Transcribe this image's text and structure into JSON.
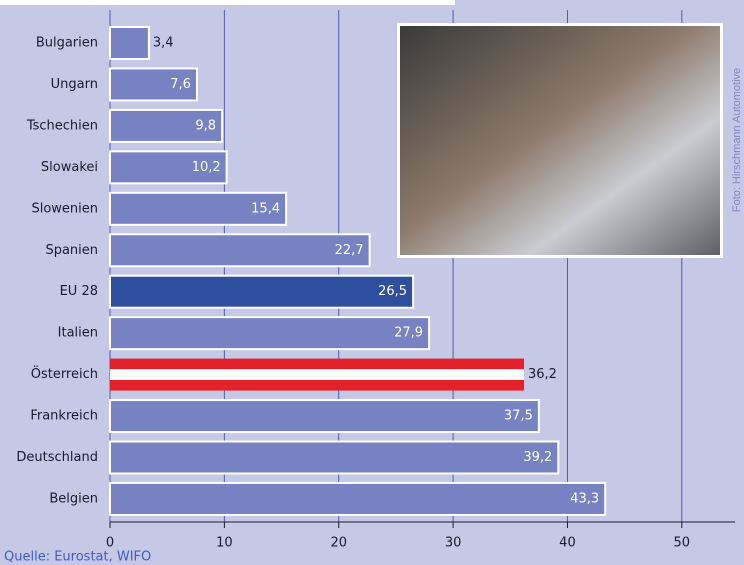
{
  "chart_data": {
    "type": "bar",
    "orientation": "horizontal",
    "categories": [
      "Bulgarien",
      "Ungarn",
      "Tschechien",
      "Slowakei",
      "Slowenien",
      "Spanien",
      "EU 28",
      "Italien",
      "Österreich",
      "Frankreich",
      "Deutschland",
      "Belgien"
    ],
    "values": [
      3.4,
      7.6,
      9.8,
      10.2,
      15.4,
      22.7,
      26.5,
      27.9,
      36.2,
      37.5,
      39.2,
      43.3
    ],
    "value_labels": [
      "3,4",
      "7,6",
      "9,8",
      "10,2",
      "15,4",
      "22,7",
      "26,5",
      "27,9",
      "36,2",
      "37,5",
      "39,2",
      "43,3"
    ],
    "colors": [
      "#7782c3",
      "#7782c3",
      "#7782c3",
      "#7782c3",
      "#7782c3",
      "#7782c3",
      "#2e4f9e",
      "#7782c3",
      "#e3212b",
      "#7782c3",
      "#7782c3",
      "#7782c3"
    ],
    "xlim": [
      0,
      55
    ],
    "xticks": [
      0,
      10,
      20,
      30,
      40,
      50
    ],
    "grid": true,
    "source": "Quelle: Eurostat, WIFO",
    "photo_credit": "Foto: Hirschmann Automotive"
  }
}
